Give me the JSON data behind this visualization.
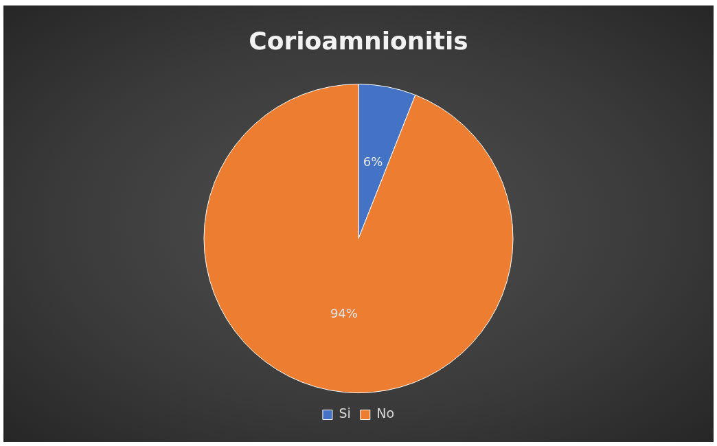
{
  "chart_data": {
    "type": "pie",
    "title": "Corioamnionitis",
    "categories": [
      "Si",
      "No"
    ],
    "values": [
      6,
      94
    ],
    "colors": [
      "#4472c4",
      "#ed7d31"
    ],
    "value_labels": [
      "6%",
      "94%"
    ],
    "legend": "bottom"
  }
}
